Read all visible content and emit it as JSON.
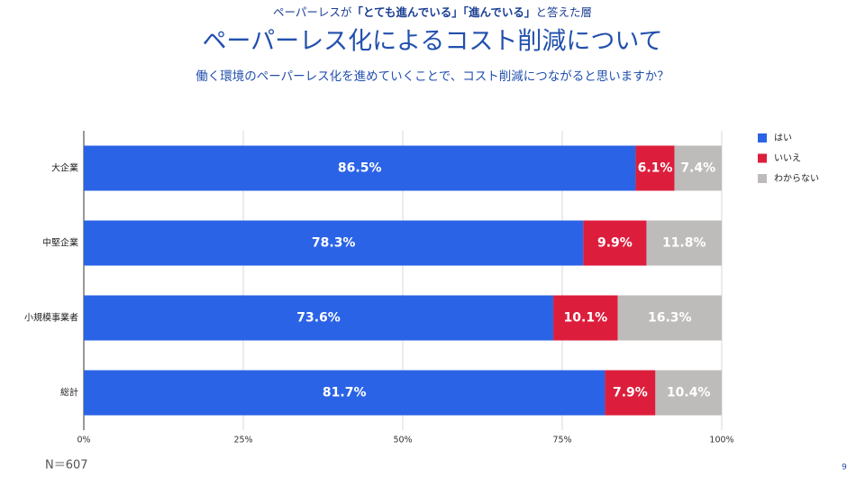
{
  "header": {
    "supertitle": [
      "ペーパーレスが",
      "「とても進んでいる」「進んでいる」",
      "と答えた層"
    ],
    "title": "ペーパーレス化によるコスト削減について",
    "question": "働く環境のペーパーレス化を進めていくことで、コスト削減につながると思いますか？"
  },
  "chart_data": {
    "type": "stacked-bar-horizontal",
    "categories": [
      "大企業",
      "中堅企業",
      "小規模事業者",
      "総計"
    ],
    "series": [
      {
        "name": "はい",
        "color": "#2b63e6",
        "values": [
          86.5,
          78.3,
          73.6,
          81.7
        ],
        "value_labels": [
          "86.5%",
          "78.3%",
          "73.6%",
          "81.7%"
        ]
      },
      {
        "name": "いいえ",
        "color": "#dc1e3c",
        "values": [
          6.1,
          9.9,
          10.1,
          7.9
        ],
        "value_labels": [
          "6.1%",
          "9.9%",
          "10.1%",
          "7.9%"
        ]
      },
      {
        "name": "わからない",
        "color": "#bebcba",
        "values": [
          7.4,
          11.8,
          16.3,
          10.4
        ],
        "value_labels": [
          "7.4%",
          "11.8%",
          "16.3%",
          "10.4%"
        ]
      }
    ],
    "xlim": [
      0,
      100
    ],
    "xticks": [
      {
        "value": 0,
        "label": "0%"
      },
      {
        "value": 25,
        "label": "25%"
      },
      {
        "value": 50,
        "label": "50%"
      },
      {
        "value": 75,
        "label": "75%"
      },
      {
        "value": 100,
        "label": "100%"
      }
    ],
    "grid": true,
    "legend": "right"
  },
  "footer": {
    "note": "N＝607",
    "page": "9"
  }
}
